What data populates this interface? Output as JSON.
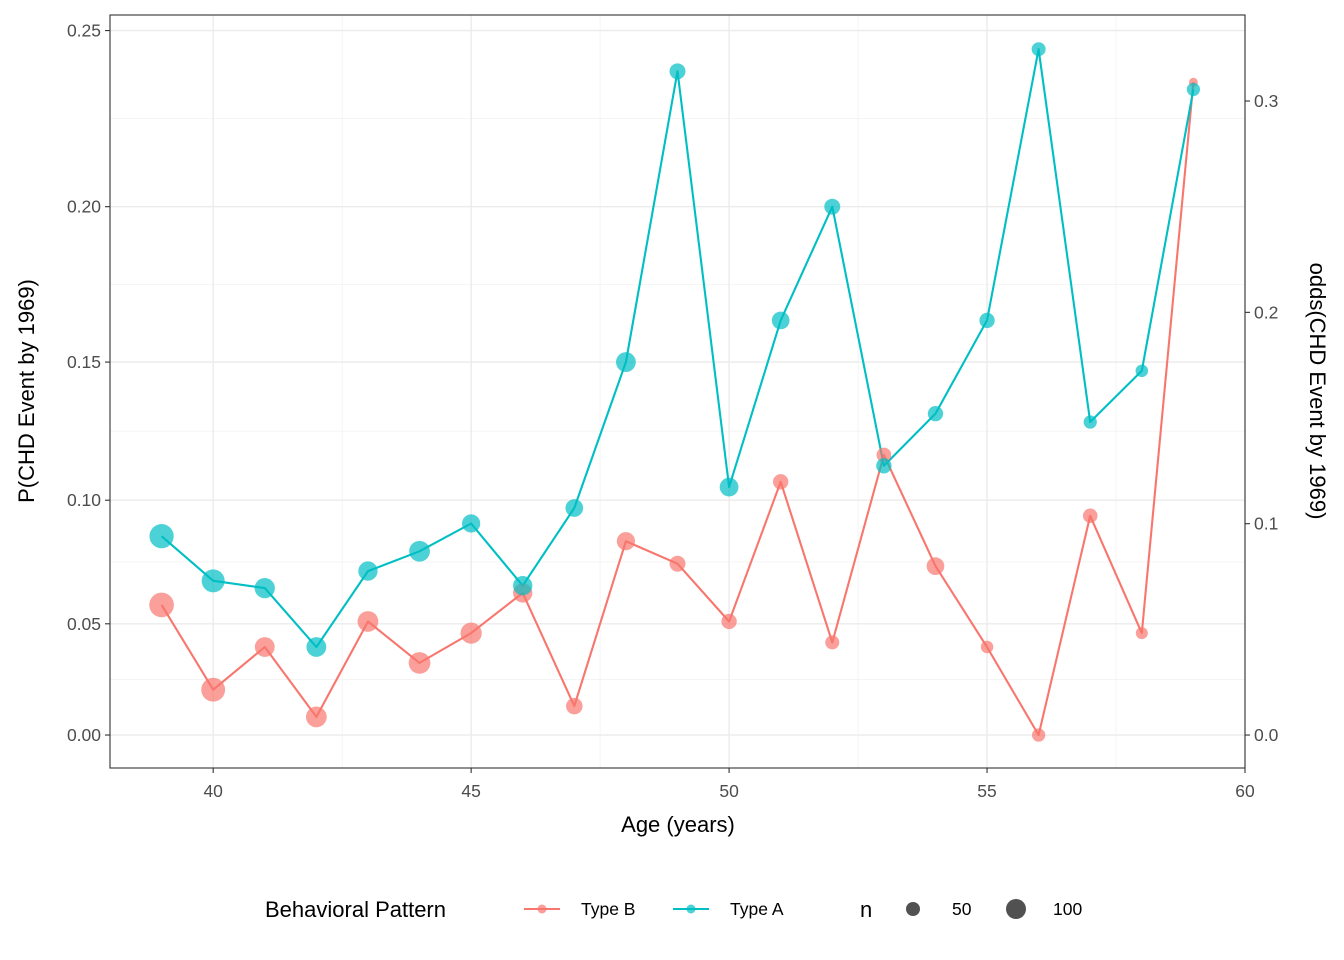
{
  "chart_data": {
    "type": "line",
    "title": "",
    "xlabel": "Age (years)",
    "ylabel": "P(CHD Event by 1969)",
    "ylabel_right": "odds(CHD Event by 1969)",
    "xlim": [
      38,
      60
    ],
    "x_ticks": [
      40,
      45,
      50,
      55,
      60
    ],
    "x_minor_ticks": [
      42.5,
      47.5,
      52.5,
      57.5
    ],
    "y_scale": "odds",
    "ylim_odds": [
      -0.0156,
      0.3407
    ],
    "y_ticks": [
      0.0,
      0.05,
      0.1,
      0.15,
      0.2,
      0.25
    ],
    "y_tick_labels": [
      "0.00",
      "0.05",
      "0.10",
      "0.15",
      "0.20",
      "0.25"
    ],
    "y_right_ticks": [
      0.0,
      0.1,
      0.2,
      0.3
    ],
    "y_right_tick_labels": [
      "0.0",
      "0.1",
      "0.2",
      "0.3"
    ],
    "grid": true,
    "legend_position": "bottom",
    "legend": {
      "color_title": "Behavioral Pattern",
      "size_title": "n",
      "size_entries": [
        {
          "label": "50",
          "n": 50
        },
        {
          "label": "100",
          "n": 100
        }
      ]
    },
    "series": [
      {
        "name": "Type B",
        "color": "#F8766D",
        "x": [
          39,
          40,
          41,
          42,
          43,
          44,
          45,
          46,
          47,
          48,
          49,
          50,
          51,
          52,
          53,
          54,
          55,
          56,
          57,
          58,
          59
        ],
        "p": [
          0.058,
          0.021,
          0.04,
          0.0085,
          0.051,
          0.033,
          0.046,
          0.063,
          0.0135,
          0.084,
          0.075,
          0.051,
          0.107,
          0.042,
          0.117,
          0.074,
          0.04,
          0.0,
          0.094,
          0.046,
          0.236
        ],
        "n": [
          155,
          145,
          100,
          110,
          110,
          120,
          115,
          95,
          70,
          85,
          65,
          60,
          60,
          50,
          55,
          80,
          40,
          45,
          54,
          37,
          20
        ]
      },
      {
        "name": "Type A",
        "color": "#00BFC4",
        "x": [
          39,
          40,
          41,
          42,
          43,
          44,
          45,
          46,
          47,
          48,
          49,
          50,
          51,
          52,
          53,
          54,
          55,
          56,
          57,
          58,
          59
        ],
        "p": [
          0.086,
          0.068,
          0.065,
          0.04,
          0.072,
          0.08,
          0.091,
          0.066,
          0.097,
          0.15,
          0.239,
          0.105,
          0.164,
          0.2,
          0.113,
          0.132,
          0.164,
          0.245,
          0.129,
          0.147,
          0.234
        ],
        "n": [
          150,
          135,
          105,
          100,
          95,
          110,
          85,
          95,
          80,
          100,
          65,
          90,
          80,
          65,
          60,
          60,
          60,
          50,
          45,
          40,
          45
        ]
      }
    ]
  }
}
